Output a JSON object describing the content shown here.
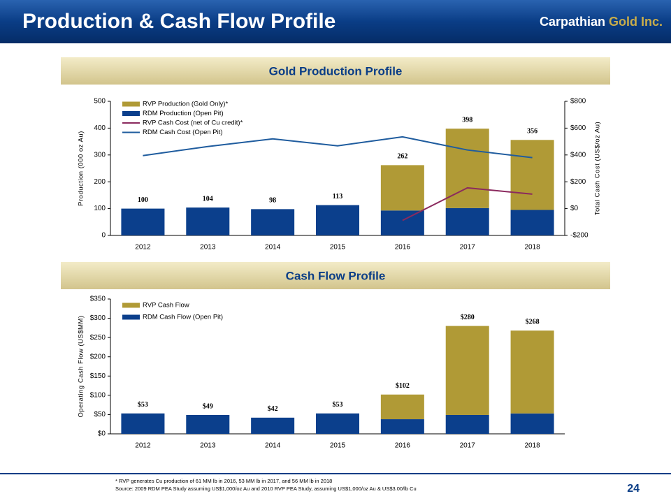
{
  "header": {
    "title": "Production & Cash Flow Profile",
    "brand": "Carpathian",
    "brand_accent": "Gold Inc."
  },
  "chart_data": [
    {
      "type": "bar",
      "stacked": true,
      "title": "Gold Production Profile",
      "ylabel": "Production (000 oz Au)",
      "y2label": "Total Cash Cost (US$/oz Au)",
      "categories": [
        "2012",
        "2013",
        "2014",
        "2015",
        "2016",
        "2017",
        "2018"
      ],
      "series": [
        {
          "name": "RVP Production (Gold Only)*",
          "color": "#b09a36",
          "values": [
            0,
            0,
            0,
            0,
            169,
            296,
            261
          ]
        },
        {
          "name": "RDM Production (Open Pit)",
          "color": "#0b3f8c",
          "values": [
            100,
            104,
            98,
            113,
            93,
            102,
            95
          ]
        },
        {
          "name": "RVP Cash Cost (net of Cu credit)*",
          "color": "#8b2a5e",
          "type": "line",
          "axis": "y2",
          "values": [
            null,
            null,
            null,
            null,
            -88,
            155,
            108
          ]
        },
        {
          "name": "RDM Cash Cost (Open Pit)",
          "color": "#1f5c9e",
          "type": "line",
          "axis": "y2",
          "values": [
            395,
            463,
            520,
            468,
            535,
            437,
            380
          ]
        }
      ],
      "totals": [
        100,
        104,
        98,
        113,
        262,
        398,
        356
      ],
      "ylim": [
        0,
        500
      ],
      "yticks": [
        0,
        100,
        200,
        300,
        400,
        500
      ],
      "y2lim": [
        -200,
        800
      ],
      "y2ticks": [
        {
          "value": -200,
          "label": "-$200"
        },
        {
          "value": 0,
          "label": "$0"
        },
        {
          "value": 200,
          "label": "$200"
        },
        {
          "value": 400,
          "label": "$400"
        },
        {
          "value": 600,
          "label": "$600"
        },
        {
          "value": 800,
          "label": "$800"
        }
      ],
      "legend": "upper left"
    },
    {
      "type": "bar",
      "stacked": true,
      "title": "Cash Flow Profile",
      "ylabel": "Operating Cash Flow (US$MM)",
      "categories": [
        "2012",
        "2013",
        "2014",
        "2015",
        "2016",
        "2017",
        "2018"
      ],
      "series": [
        {
          "name": "RVP Cash Flow",
          "color": "#b09a36",
          "values": [
            0,
            0,
            0,
            0,
            64,
            231,
            215
          ]
        },
        {
          "name": "RDM Cash Flow (Open Pit)",
          "color": "#0b3f8c",
          "values": [
            53,
            49,
            42,
            53,
            38,
            49,
            53
          ]
        }
      ],
      "totals": [
        53,
        49,
        42,
        53,
        102,
        280,
        268
      ],
      "total_labels": [
        "$53",
        "$49",
        "$42",
        "$53",
        "$102",
        "$280",
        "$268"
      ],
      "ylim": [
        0,
        350
      ],
      "yticks": [
        {
          "value": 0,
          "label": "$0"
        },
        {
          "value": 50,
          "label": "$50"
        },
        {
          "value": 100,
          "label": "$100"
        },
        {
          "value": 150,
          "label": "$150"
        },
        {
          "value": 200,
          "label": "$200"
        },
        {
          "value": 250,
          "label": "$250"
        },
        {
          "value": 300,
          "label": "$300"
        },
        {
          "value": 350,
          "label": "$350"
        }
      ],
      "legend": "upper left"
    }
  ],
  "footnotes": [
    "*  RVP generates Cu production of 61 MM lb in 2016, 53 MM lb in 2017, and 56 MM lb in 2018",
    "Source: 2009 RDM PEA Study assuming US$1,000/oz Au and 2010 RVP PEA Study, assuming US$1,000/oz Au & US$3.00/lb Cu"
  ],
  "page_number": 24
}
